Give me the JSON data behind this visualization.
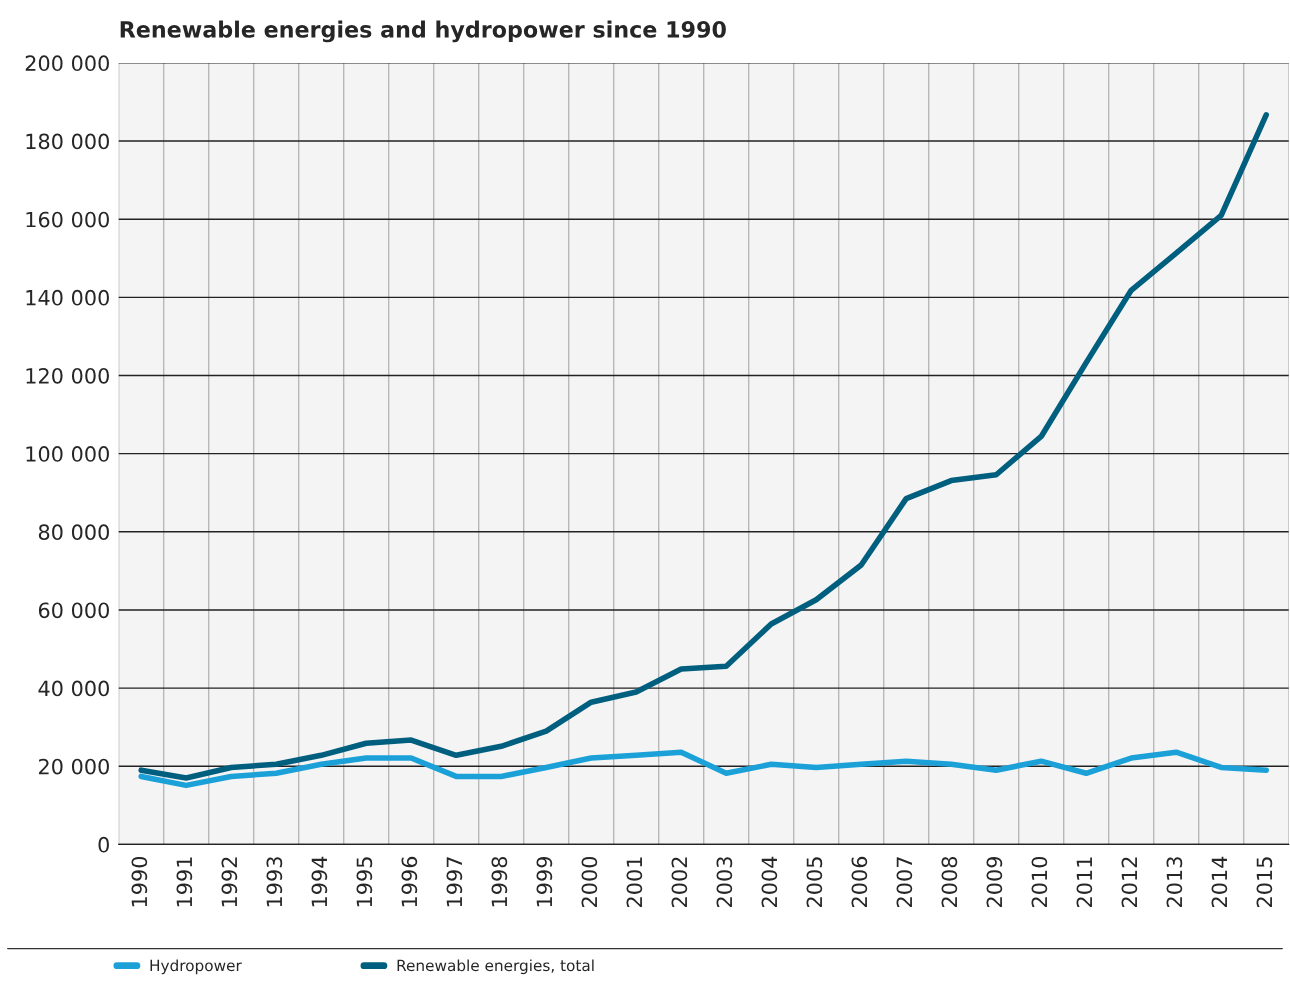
{
  "chart_data": {
    "type": "line",
    "title": "Renewable energies and hydropower since 1990",
    "categories": [
      "1990",
      "1991",
      "1992",
      "1993",
      "1994",
      "1995",
      "1996",
      "1997",
      "1998",
      "1999",
      "2000",
      "2001",
      "2002",
      "2003",
      "2004",
      "2005",
      "2006",
      "2007",
      "2008",
      "2009",
      "2010",
      "2011",
      "2012",
      "2013",
      "2014",
      "2015"
    ],
    "series": [
      {
        "name": "Hydropower",
        "color": "#1ba1d8",
        "values": [
          17400,
          15100,
          17400,
          18200,
          20500,
          22100,
          22100,
          17400,
          17400,
          19700,
          22100,
          22800,
          23600,
          18200,
          20500,
          19700,
          20500,
          21300,
          20500,
          19000,
          21300,
          18200,
          22100,
          23600,
          19700,
          19000
        ]
      },
      {
        "name": "Renewable energies, total",
        "color": "#005f7f",
        "values": [
          19000,
          17000,
          19700,
          20500,
          22800,
          25900,
          26700,
          22800,
          25100,
          29000,
          36400,
          39000,
          44900,
          45600,
          56400,
          62600,
          71500,
          88500,
          93100,
          94600,
          104400,
          123300,
          141800,
          151300,
          161000,
          186700
        ]
      }
    ],
    "ylim": [
      0,
      200000
    ],
    "yticks": [
      {
        "value": 0,
        "label": "0"
      },
      {
        "value": 20000,
        "label": "20 000"
      },
      {
        "value": 40000,
        "label": "40 000"
      },
      {
        "value": 60000,
        "label": "60 000"
      },
      {
        "value": 80000,
        "label": "80 000"
      },
      {
        "value": 100000,
        "label": "100 000"
      },
      {
        "value": 120000,
        "label": "120 000"
      },
      {
        "value": 140000,
        "label": "140 000"
      },
      {
        "value": 160000,
        "label": "160 000"
      },
      {
        "value": 180000,
        "label": "180 000"
      },
      {
        "value": 200000,
        "label": "200 000"
      }
    ],
    "grid": true,
    "legend": "bottom",
    "marker": "none",
    "line_style": "solid"
  }
}
